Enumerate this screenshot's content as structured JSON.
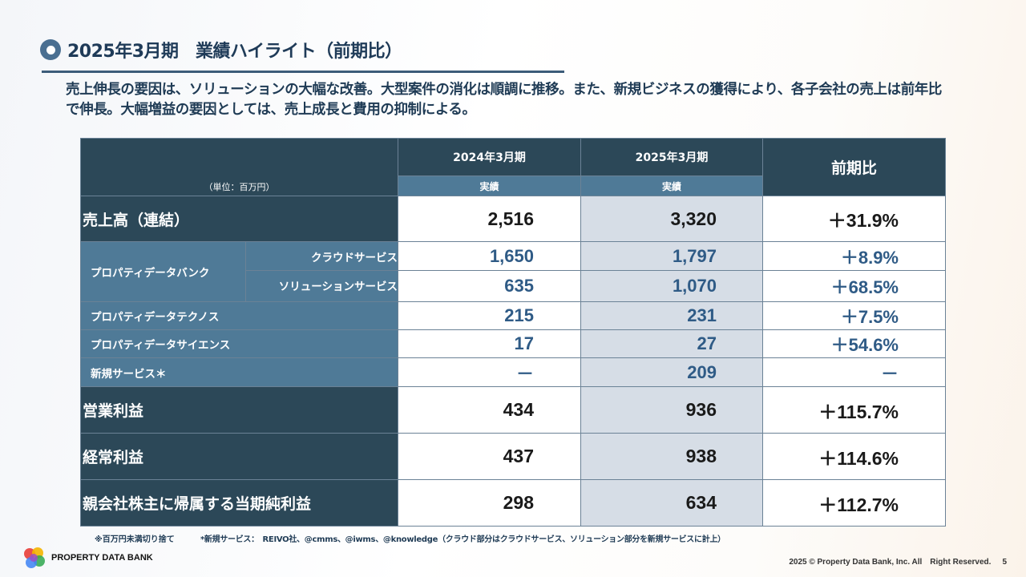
{
  "title": "2025年3月期　業績ハイライト（前期比）",
  "summary": "売上伸長の要因は、ソリューションの大幅な改善。大型案件の消化は順調に推移。また、新規ビジネスの獲得により、各子会社の売上は前年比で伸長。大幅増益の要因としては、売上成長と費用の抑制による。",
  "table": {
    "unit_label": "（単位：百万円）",
    "col_2024": "2024年3月期",
    "col_2025": "2025年3月期",
    "col_change": "前期比",
    "sub_2024": "実績",
    "sub_2025": "実績",
    "rows": [
      {
        "label": "売上高（連結）",
        "v2024": "2,516",
        "v2025": "3,320",
        "change": "＋31.9%"
      },
      {
        "group": "プロパティデータバンク",
        "label": "クラウドサービス",
        "v2024": "1,650",
        "v2025": "1,797",
        "change": "＋8.9%"
      },
      {
        "label": "ソリューションサービス",
        "v2024": "635",
        "v2025": "1,070",
        "change": "＋68.5%"
      },
      {
        "label": "プロパティデータテクノス",
        "v2024": "215",
        "v2025": "231",
        "change": "＋7.5%"
      },
      {
        "label": "プロパティデータサイエンス",
        "v2024": "17",
        "v2025": "27",
        "change": "＋54.6%"
      },
      {
        "label": "新規サービス＊",
        "v2024": "－",
        "v2025": "209",
        "change": "－"
      },
      {
        "label": "営業利益",
        "v2024": "434",
        "v2025": "936",
        "change": "＋115.7%"
      },
      {
        "label": "経常利益",
        "v2024": "437",
        "v2025": "938",
        "change": "＋114.6%"
      },
      {
        "label": "親会社株主に帰属する当期純利益",
        "v2024": "298",
        "v2025": "634",
        "change": "＋112.7%"
      }
    ]
  },
  "notes": {
    "rounding": "※百万円未満切り捨て",
    "new_services": "*新規サービス：　REIVO社、@cmms、@iwms、@knowledge（クラウド部分はクラウドサービス、ソリューション部分を新規サービスに計上）"
  },
  "company": "PROPERTY DATA BANK",
  "footer": {
    "copyright": "2025 © Property Data Bank, Inc. All　Right Reserved.",
    "page": "5"
  },
  "colors": {
    "header_dark": "#2c4858",
    "header_mid": "#4f7a97",
    "accent_blue": "#2f5b86",
    "column_grey": "#d6dde6"
  }
}
